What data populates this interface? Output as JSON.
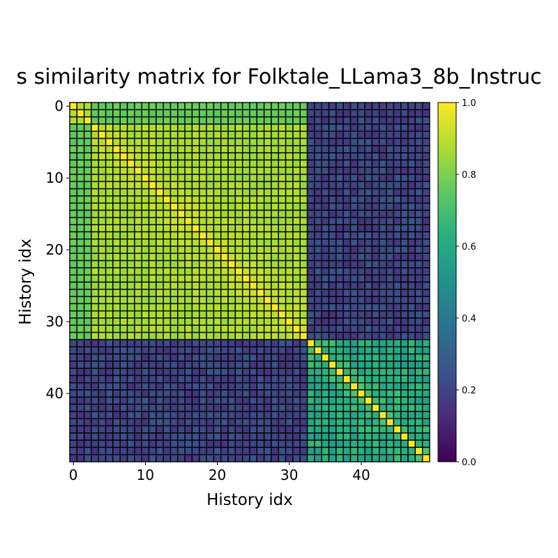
{
  "chart_data": {
    "type": "heatmap",
    "title": "s similarity matrix for Folktale_LLama3_8b_Instruc",
    "xlabel": "History idx",
    "ylabel": "History idx",
    "n": 50,
    "x_ticks": [
      0,
      10,
      20,
      30,
      40
    ],
    "y_ticks": [
      0,
      10,
      20,
      30,
      40
    ],
    "colorbar": {
      "min": 0.0,
      "max": 1.0,
      "ticks": [
        "0.0",
        "0.2",
        "0.4",
        "0.6",
        "0.8",
        "1.0"
      ],
      "colormap": "viridis"
    },
    "clusters": [
      {
        "start": 0,
        "end": 2,
        "within_similarity": 0.9,
        "note": "rows 0-2 nested in cluster 0-32"
      },
      {
        "start": 0,
        "end": 32,
        "within_similarity": 0.76
      },
      {
        "start": 3,
        "end": 32,
        "within_similarity": 0.86
      },
      {
        "start": 33,
        "end": 49,
        "within_similarity": 0.6
      }
    ],
    "between_cluster_similarity": 0.2,
    "diagonal": 1.0
  },
  "colors": {
    "cell_border": "#000000",
    "background": "#ffffff"
  }
}
